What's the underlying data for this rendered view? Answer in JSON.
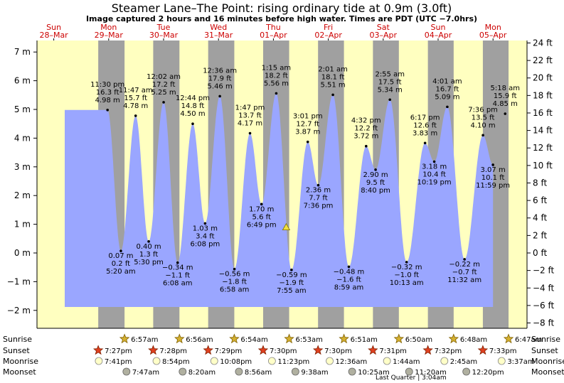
{
  "chart_data": {
    "type": "area",
    "title": "Steamer Lane–The Point: rising  ordinary tide at 0.9m (3.0ft)",
    "subtitle": "Image captured 2 hours and 16 minutes before high water. Times are PDT (UTC −7.0hrs)",
    "days": [
      {
        "weekday": "Sun",
        "date": "28–Mar"
      },
      {
        "weekday": "Mon",
        "date": "29–Mar"
      },
      {
        "weekday": "Tue",
        "date": "30–Mar"
      },
      {
        "weekday": "Wed",
        "date": "31–Mar"
      },
      {
        "weekday": "Thu",
        "date": "01–Apr"
      },
      {
        "weekday": "Fri",
        "date": "02–Apr"
      },
      {
        "weekday": "Sat",
        "date": "03–Apr"
      },
      {
        "weekday": "Sun",
        "date": "04–Apr"
      },
      {
        "weekday": "Mon",
        "date": "05–Apr"
      }
    ],
    "y_left_ticks": [
      "7 m",
      "6 m",
      "5 m",
      "4 m",
      "3 m",
      "2 m",
      "1 m",
      "0 m",
      "−1 m",
      "−2 m"
    ],
    "y_right_ticks": [
      "24 ft",
      "22 ft",
      "20 ft",
      "18 ft",
      "16 ft",
      "14 ft",
      "12 ft",
      "10 ft",
      "8 ft",
      "6 ft",
      "4 ft",
      "2 ft",
      "0 ft",
      "−2 ft",
      "−4 ft",
      "−6 ft",
      "−8 ft"
    ],
    "ylim_m": [
      -2.3,
      7.2
    ],
    "current_tide_m": 0.9,
    "tides": [
      {
        "day": 0.979,
        "m": 4.98,
        "l1": "11:30 pm",
        "l2": "16.3 ft",
        "l3": "4.98 m",
        "pos": "above"
      },
      {
        "day": 1.222,
        "m": 0.07,
        "l1": "0.07 m",
        "l2": "0.2 ft",
        "l3": "5:20 am",
        "pos": "below"
      },
      {
        "day": 1.491,
        "m": 4.78,
        "l1": "11:47 am",
        "l2": "15.7 ft",
        "l3": "4.78 m",
        "pos": "above"
      },
      {
        "day": 1.729,
        "m": 0.4,
        "l1": "0.40 m",
        "l2": "1.3 ft",
        "l3": "5:30 pm",
        "pos": "below"
      },
      {
        "day": 2.001,
        "m": 5.25,
        "l1": "12:02 am",
        "l2": "17.2 ft",
        "l3": "5.25 m",
        "pos": "above"
      },
      {
        "day": 2.256,
        "m": -0.34,
        "l1": "−0.34 m",
        "l2": "−1.1 ft",
        "l3": "6:08 am",
        "pos": "below"
      },
      {
        "day": 2.531,
        "m": 4.5,
        "l1": "12:44 pm",
        "l2": "14.8 ft",
        "l3": "4.50 m",
        "pos": "above"
      },
      {
        "day": 2.756,
        "m": 1.03,
        "l1": "1.03 m",
        "l2": "3.4 ft",
        "l3": "6:08 pm",
        "pos": "below"
      },
      {
        "day": 3.025,
        "m": 5.46,
        "l1": "12:36 am",
        "l2": "17.9 ft",
        "l3": "5.46 m",
        "pos": "above"
      },
      {
        "day": 3.29,
        "m": -0.56,
        "l1": "−0.56 m",
        "l2": "−1.8 ft",
        "l3": "6:58 am",
        "pos": "below"
      },
      {
        "day": 3.574,
        "m": 4.17,
        "l1": "1:47 pm",
        "l2": "13.7 ft",
        "l3": "4.17 m",
        "pos": "above"
      },
      {
        "day": 3.784,
        "m": 1.7,
        "l1": "1.70 m",
        "l2": "5.6 ft",
        "l3": "6:49 pm",
        "pos": "below"
      },
      {
        "day": 4.052,
        "m": 5.56,
        "l1": "1:15 am",
        "l2": "18.2 ft",
        "l3": "5.56 m",
        "pos": "above"
      },
      {
        "day": 4.33,
        "m": -0.59,
        "l1": "−0.59 m",
        "l2": "−1.9 ft",
        "l3": "7:55 am",
        "pos": "below"
      },
      {
        "day": 4.626,
        "m": 3.87,
        "l1": "3:01 pm",
        "l2": "12.7 ft",
        "l3": "3.87 m",
        "pos": "above"
      },
      {
        "day": 4.817,
        "m": 2.36,
        "l1": "2.36 m",
        "l2": "7.7 ft",
        "l3": "7:36 pm",
        "pos": "below"
      },
      {
        "day": 5.084,
        "m": 5.51,
        "l1": "2:01 am",
        "l2": "18.1 ft",
        "l3": "5.51 m",
        "pos": "above"
      },
      {
        "day": 5.374,
        "m": -0.48,
        "l1": "−0.48 m",
        "l2": "−1.6 ft",
        "l3": "8:59 am",
        "pos": "below"
      },
      {
        "day": 5.689,
        "m": 3.72,
        "l1": "4:32 pm",
        "l2": "12.2 ft",
        "l3": "3.72 m",
        "pos": "above"
      },
      {
        "day": 5.861,
        "m": 2.9,
        "l1": "2.90 m",
        "l2": "9.5 ft",
        "l3": "8:40 pm",
        "pos": "below"
      },
      {
        "day": 6.122,
        "m": 5.34,
        "l1": "2:55 am",
        "l2": "17.5 ft",
        "l3": "5.34 m",
        "pos": "above"
      },
      {
        "day": 6.426,
        "m": -0.32,
        "l1": "−0.32 m",
        "l2": "−1.0 ft",
        "l3": "10:13 am",
        "pos": "below"
      },
      {
        "day": 6.762,
        "m": 3.83,
        "l1": "6:17 pm",
        "l2": "12.6 ft",
        "l3": "3.83 m",
        "pos": "above"
      },
      {
        "day": 6.93,
        "m": 3.18,
        "l1": "3.18 m",
        "l2": "10.4 ft",
        "l3": "10:19 pm",
        "pos": "below"
      },
      {
        "day": 7.167,
        "m": 5.09,
        "l1": "4:01 am",
        "l2": "16.7 ft",
        "l3": "5.09 m",
        "pos": "above"
      },
      {
        "day": 7.481,
        "m": -0.22,
        "l1": "−0.22 m",
        "l2": "−0.7 ft",
        "l3": "11:32 am",
        "pos": "below"
      },
      {
        "day": 7.817,
        "m": 4.1,
        "l1": "7:36 pm",
        "l2": "13.5 ft",
        "l3": "4.10 m",
        "pos": "above"
      },
      {
        "day": 7.999,
        "m": 3.07,
        "l1": "3.07 m",
        "l2": "10.1 ft",
        "l3": "11:59 pm",
        "pos": "below"
      },
      {
        "day": 8.221,
        "m": 4.85,
        "l1": "5:18 am",
        "l2": "15.9 ft",
        "l3": "4.85 m",
        "pos": "above"
      }
    ],
    "astro": {
      "row_labels": [
        "Sunrise",
        "Sunset",
        "Moonrise",
        "Moonset"
      ],
      "sunrise": [
        {
          "day": 1.289,
          "t": "6:57am"
        },
        {
          "day": 2.289,
          "t": "6:56am"
        },
        {
          "day": 3.288,
          "t": "6:54am"
        },
        {
          "day": 4.287,
          "t": "6:53am"
        },
        {
          "day": 5.285,
          "t": "6:51am"
        },
        {
          "day": 6.285,
          "t": "6:50am"
        },
        {
          "day": 7.283,
          "t": "6:48am"
        },
        {
          "day": 8.283,
          "t": "6:47am"
        }
      ],
      "sunset": [
        {
          "day": 0.81,
          "t": "7:27pm"
        },
        {
          "day": 1.811,
          "t": "7:28pm"
        },
        {
          "day": 2.812,
          "t": "7:29pm"
        },
        {
          "day": 3.813,
          "t": "7:30pm"
        },
        {
          "day": 4.813,
          "t": "7:30pm"
        },
        {
          "day": 5.813,
          "t": "7:31pm"
        },
        {
          "day": 6.814,
          "t": "7:32pm"
        },
        {
          "day": 7.815,
          "t": "7:33pm"
        }
      ],
      "moonrise": [
        {
          "day": 0.82,
          "t": "7:41pm"
        },
        {
          "day": 1.871,
          "t": "8:54pm"
        },
        {
          "day": 2.923,
          "t": "10:08pm"
        },
        {
          "day": 3.974,
          "t": "11:23pm"
        },
        {
          "day": 5.025,
          "t": "12:36am"
        },
        {
          "day": 6.069,
          "t": "1:44am"
        },
        {
          "day": 7.114,
          "t": "2:45am"
        },
        {
          "day": 8.157,
          "t": "3:37am"
        }
      ],
      "moonset": [
        {
          "day": 1.324,
          "t": "7:47am"
        },
        {
          "day": 2.347,
          "t": "8:20am"
        },
        {
          "day": 3.372,
          "t": "8:56am"
        },
        {
          "day": 4.401,
          "t": "9:38am"
        },
        {
          "day": 5.434,
          "t": "10:25am"
        },
        {
          "day": 6.472,
          "t": "11:20am"
        },
        {
          "day": 7.514,
          "t": "12:20pm"
        }
      ],
      "moon_phase": "Last Quarter | 3:04am"
    }
  },
  "colors": {
    "day": "#ffffc0",
    "night": "#a0a0a0",
    "water": "#9aa6ff",
    "date_label": "#cc0000",
    "grid": "#000000"
  }
}
